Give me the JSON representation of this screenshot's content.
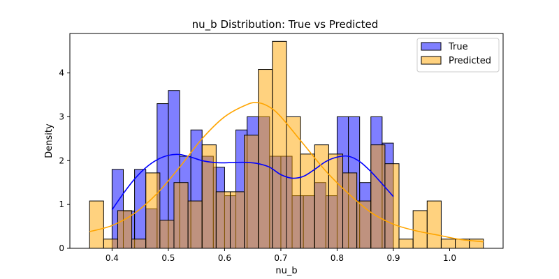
{
  "chart_data": {
    "type": "bar",
    "title": "nu_b Distribution: True vs Predicted",
    "xlabel": "nu_b",
    "ylabel": "Density",
    "xlim": [
      0.325,
      1.095
    ],
    "ylim": [
      0,
      4.9
    ],
    "x_ticks": [
      "0.4",
      "0.5",
      "0.6",
      "0.7",
      "0.8",
      "0.9",
      "1.0"
    ],
    "y_ticks": [
      "0",
      "1",
      "2",
      "3",
      "4"
    ],
    "grid": false,
    "legend_position": "top-right",
    "series": [
      {
        "name": "True",
        "color": "#0000ff",
        "kde_color": "#0000ff",
        "bins": [
          {
            "x0": 0.4,
            "x1": 0.42,
            "y": 1.8
          },
          {
            "x0": 0.42,
            "x1": 0.44,
            "y": 0.85
          },
          {
            "x0": 0.44,
            "x1": 0.46,
            "y": 1.8
          },
          {
            "x0": 0.46,
            "x1": 0.48,
            "y": 0.9
          },
          {
            "x0": 0.48,
            "x1": 0.5,
            "y": 3.3
          },
          {
            "x0": 0.5,
            "x1": 0.52,
            "y": 3.6
          },
          {
            "x0": 0.52,
            "x1": 0.54,
            "y": 2.1
          },
          {
            "x0": 0.54,
            "x1": 0.56,
            "y": 2.7
          },
          {
            "x0": 0.56,
            "x1": 0.58,
            "y": 2.1
          },
          {
            "x0": 0.58,
            "x1": 0.6,
            "y": 1.85
          },
          {
            "x0": 0.6,
            "x1": 0.62,
            "y": 1.2
          },
          {
            "x0": 0.62,
            "x1": 0.64,
            "y": 2.7
          },
          {
            "x0": 0.64,
            "x1": 0.66,
            "y": 3.0
          },
          {
            "x0": 0.66,
            "x1": 0.68,
            "y": 3.0
          },
          {
            "x0": 0.68,
            "x1": 0.7,
            "y": 2.1
          },
          {
            "x0": 0.7,
            "x1": 0.72,
            "y": 2.1
          },
          {
            "x0": 0.72,
            "x1": 0.74,
            "y": 1.2
          },
          {
            "x0": 0.74,
            "x1": 0.76,
            "y": 1.2
          },
          {
            "x0": 0.76,
            "x1": 0.78,
            "y": 1.5
          },
          {
            "x0": 0.78,
            "x1": 0.8,
            "y": 1.2
          },
          {
            "x0": 0.8,
            "x1": 0.82,
            "y": 3.0
          },
          {
            "x0": 0.82,
            "x1": 0.84,
            "y": 3.0
          },
          {
            "x0": 0.84,
            "x1": 0.86,
            "y": 1.5
          },
          {
            "x0": 0.86,
            "x1": 0.88,
            "y": 3.0
          },
          {
            "x0": 0.88,
            "x1": 0.9,
            "y": 2.4
          }
        ],
        "kde": {
          "x": [
            0.4,
            0.42,
            0.44,
            0.46,
            0.48,
            0.5,
            0.52,
            0.54,
            0.56,
            0.58,
            0.6,
            0.62,
            0.64,
            0.66,
            0.68,
            0.7,
            0.72,
            0.74,
            0.76,
            0.78,
            0.8,
            0.82,
            0.84,
            0.86,
            0.88,
            0.9
          ],
          "y": [
            0.88,
            1.25,
            1.58,
            1.84,
            2.02,
            2.12,
            2.14,
            2.08,
            2.0,
            1.96,
            1.95,
            1.96,
            1.96,
            1.93,
            1.85,
            1.68,
            1.6,
            1.64,
            1.8,
            1.98,
            2.08,
            2.1,
            1.98,
            1.75,
            1.47,
            1.18
          ]
        }
      },
      {
        "name": "Predicted",
        "color": "#ffa500",
        "kde_color": "#ffa500",
        "bins": [
          {
            "x0": 0.36,
            "x1": 0.385,
            "y": 1.08
          },
          {
            "x0": 0.385,
            "x1": 0.41,
            "y": 0.21
          },
          {
            "x0": 0.41,
            "x1": 0.435,
            "y": 0.86
          },
          {
            "x0": 0.435,
            "x1": 0.46,
            "y": 0.21
          },
          {
            "x0": 0.46,
            "x1": 0.485,
            "y": 1.72
          },
          {
            "x0": 0.485,
            "x1": 0.51,
            "y": 0.64
          },
          {
            "x0": 0.51,
            "x1": 0.535,
            "y": 1.5
          },
          {
            "x0": 0.535,
            "x1": 0.56,
            "y": 1.08
          },
          {
            "x0": 0.56,
            "x1": 0.585,
            "y": 2.36
          },
          {
            "x0": 0.585,
            "x1": 0.61,
            "y": 1.29
          },
          {
            "x0": 0.61,
            "x1": 0.635,
            "y": 1.29
          },
          {
            "x0": 0.635,
            "x1": 0.66,
            "y": 2.58
          },
          {
            "x0": 0.66,
            "x1": 0.685,
            "y": 4.08
          },
          {
            "x0": 0.685,
            "x1": 0.71,
            "y": 4.72
          },
          {
            "x0": 0.71,
            "x1": 0.735,
            "y": 3.0
          },
          {
            "x0": 0.735,
            "x1": 0.76,
            "y": 2.15
          },
          {
            "x0": 0.76,
            "x1": 0.785,
            "y": 2.36
          },
          {
            "x0": 0.785,
            "x1": 0.81,
            "y": 2.15
          },
          {
            "x0": 0.81,
            "x1": 0.835,
            "y": 1.72
          },
          {
            "x0": 0.835,
            "x1": 0.86,
            "y": 1.08
          },
          {
            "x0": 0.86,
            "x1": 0.885,
            "y": 2.36
          },
          {
            "x0": 0.885,
            "x1": 0.91,
            "y": 1.93
          },
          {
            "x0": 0.91,
            "x1": 0.935,
            "y": 0.21
          },
          {
            "x0": 0.935,
            "x1": 0.96,
            "y": 0.86
          },
          {
            "x0": 0.96,
            "x1": 0.985,
            "y": 1.08
          },
          {
            "x0": 0.985,
            "x1": 1.01,
            "y": 0.21
          },
          {
            "x0": 1.01,
            "x1": 1.035,
            "y": 0.21
          },
          {
            "x0": 1.035,
            "x1": 1.06,
            "y": 0.21
          }
        ],
        "kde": {
          "x": [
            0.36,
            0.4,
            0.44,
            0.48,
            0.52,
            0.56,
            0.6,
            0.64,
            0.66,
            0.68,
            0.7,
            0.74,
            0.78,
            0.82,
            0.86,
            0.9,
            0.94,
            0.98,
            1.02,
            1.06
          ],
          "y": [
            0.38,
            0.52,
            0.8,
            1.25,
            1.85,
            2.5,
            3.0,
            3.28,
            3.32,
            3.22,
            3.0,
            2.38,
            1.76,
            1.25,
            0.82,
            0.55,
            0.4,
            0.3,
            0.2,
            0.15
          ]
        }
      }
    ]
  }
}
